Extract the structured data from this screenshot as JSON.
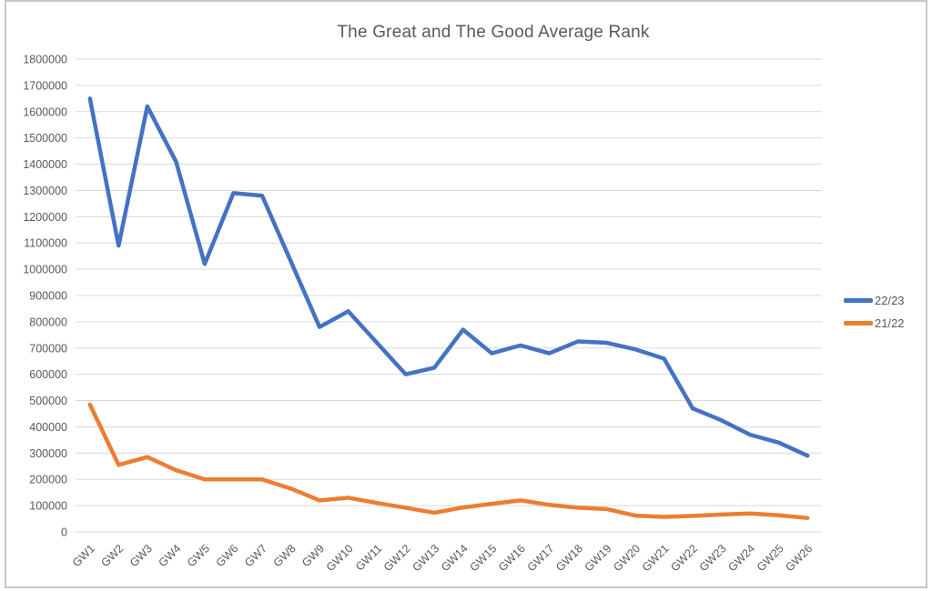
{
  "chart_data": {
    "type": "line",
    "title": "The Great and The Good Average Rank",
    "categories": [
      "GW1",
      "GW2",
      "GW3",
      "GW4",
      "GW5",
      "GW6",
      "GW7",
      "GW8",
      "GW9",
      "GW10",
      "GW11",
      "GW12",
      "GW13",
      "GW14",
      "GW15",
      "GW16",
      "GW17",
      "GW18",
      "GW19",
      "GW20",
      "GW21",
      "GW22",
      "GW23",
      "GW24",
      "GW25",
      "GW26"
    ],
    "series": [
      {
        "name": "22/23",
        "color": "#4472C4",
        "values": [
          1650000,
          1090000,
          1620000,
          1410000,
          1020000,
          1290000,
          1280000,
          1030000,
          780000,
          840000,
          720000,
          600000,
          625000,
          770000,
          680000,
          710000,
          680000,
          725000,
          720000,
          695000,
          660000,
          470000,
          425000,
          370000,
          340000,
          290000
        ]
      },
      {
        "name": "21/22",
        "color": "#ED7D31",
        "values": [
          485000,
          255000,
          285000,
          235000,
          200000,
          200000,
          200000,
          165000,
          120000,
          130000,
          110000,
          92000,
          73000,
          93000,
          107000,
          120000,
          103000,
          92000,
          87000,
          62000,
          57000,
          61000,
          66000,
          70000,
          63000,
          53000
        ]
      }
    ],
    "ylim": [
      0,
      1800000
    ],
    "y_tick_step": 100000,
    "grid": true,
    "grid_color": "#D9D9D9",
    "legend_position": "right",
    "text_color": "#595959"
  }
}
